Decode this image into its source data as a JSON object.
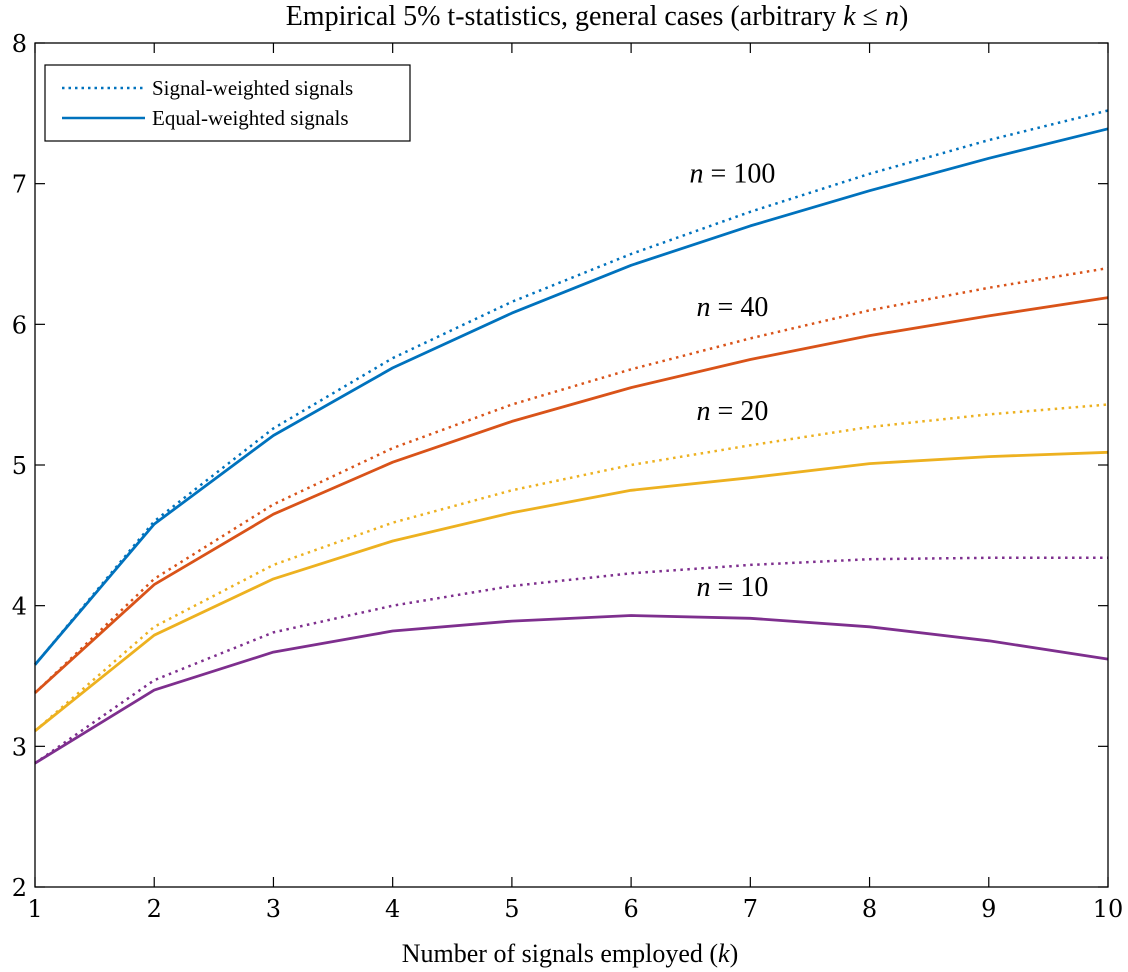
{
  "chart_data": {
    "type": "line",
    "title": "Empirical 5% t-statistics, general cases (arbitrary k ≤ n)",
    "title_parts": {
      "prefix": "Empirical 5% t-statistics, general cases (arbitrary ",
      "k": "k",
      "le": " ≤ ",
      "n": "n",
      "suffix": ")"
    },
    "xlabel": "Number of signals employed (k)",
    "xlabel_parts": {
      "prefix": "Number of signals employed (",
      "k": "k",
      "suffix": ")"
    },
    "ylabel": "",
    "xlim": [
      1,
      10
    ],
    "ylim": [
      2,
      8
    ],
    "xticks": [
      1,
      2,
      3,
      4,
      5,
      6,
      7,
      8,
      9,
      10
    ],
    "yticks": [
      2,
      3,
      4,
      5,
      6,
      7,
      8
    ],
    "grid": false,
    "legend_position": "top-left",
    "legend": [
      {
        "label": "Signal-weighted signals",
        "style": "dotted"
      },
      {
        "label": "Equal-weighted signals",
        "style": "solid"
      }
    ],
    "x": [
      1,
      2,
      3,
      4,
      5,
      6,
      7,
      8,
      9,
      10
    ],
    "series": [
      {
        "n": 100,
        "style": "dotted",
        "color": "#0072BD",
        "values": [
          3.58,
          4.6,
          5.26,
          5.76,
          6.16,
          6.5,
          6.8,
          7.07,
          7.31,
          7.52
        ]
      },
      {
        "n": 100,
        "style": "solid",
        "color": "#0072BD",
        "values": [
          3.58,
          4.58,
          5.21,
          5.69,
          6.08,
          6.42,
          6.7,
          6.95,
          7.18,
          7.39
        ]
      },
      {
        "n": 40,
        "style": "dotted",
        "color": "#D95319",
        "values": [
          3.38,
          4.19,
          4.72,
          5.12,
          5.43,
          5.68,
          5.9,
          6.1,
          6.26,
          6.4
        ]
      },
      {
        "n": 40,
        "style": "solid",
        "color": "#D95319",
        "values": [
          3.38,
          4.15,
          4.65,
          5.02,
          5.31,
          5.55,
          5.75,
          5.92,
          6.06,
          6.19
        ]
      },
      {
        "n": 20,
        "style": "dotted",
        "color": "#EDB120",
        "values": [
          3.11,
          3.85,
          4.29,
          4.59,
          4.82,
          5.0,
          5.14,
          5.27,
          5.36,
          5.43
        ]
      },
      {
        "n": 20,
        "style": "solid",
        "color": "#EDB120",
        "values": [
          3.11,
          3.79,
          4.19,
          4.46,
          4.66,
          4.82,
          4.91,
          5.01,
          5.06,
          5.09
        ]
      },
      {
        "n": 10,
        "style": "dotted",
        "color": "#7E2F8E",
        "values": [
          2.88,
          3.47,
          3.81,
          4.0,
          4.14,
          4.23,
          4.29,
          4.33,
          4.34,
          4.34
        ]
      },
      {
        "n": 10,
        "style": "solid",
        "color": "#7E2F8E",
        "values": [
          2.88,
          3.4,
          3.67,
          3.82,
          3.89,
          3.93,
          3.91,
          3.85,
          3.75,
          3.62
        ]
      }
    ],
    "annotations": [
      {
        "text_n": "n",
        "text_eq": " = 100",
        "x": 6.85,
        "y": 7.01
      },
      {
        "text_n": "n",
        "text_eq": " = 40",
        "x": 6.85,
        "y": 6.06
      },
      {
        "text_n": "n",
        "text_eq": " = 20",
        "x": 6.85,
        "y": 5.32
      },
      {
        "text_n": "n",
        "text_eq": " = 10",
        "x": 6.85,
        "y": 4.07
      }
    ]
  }
}
